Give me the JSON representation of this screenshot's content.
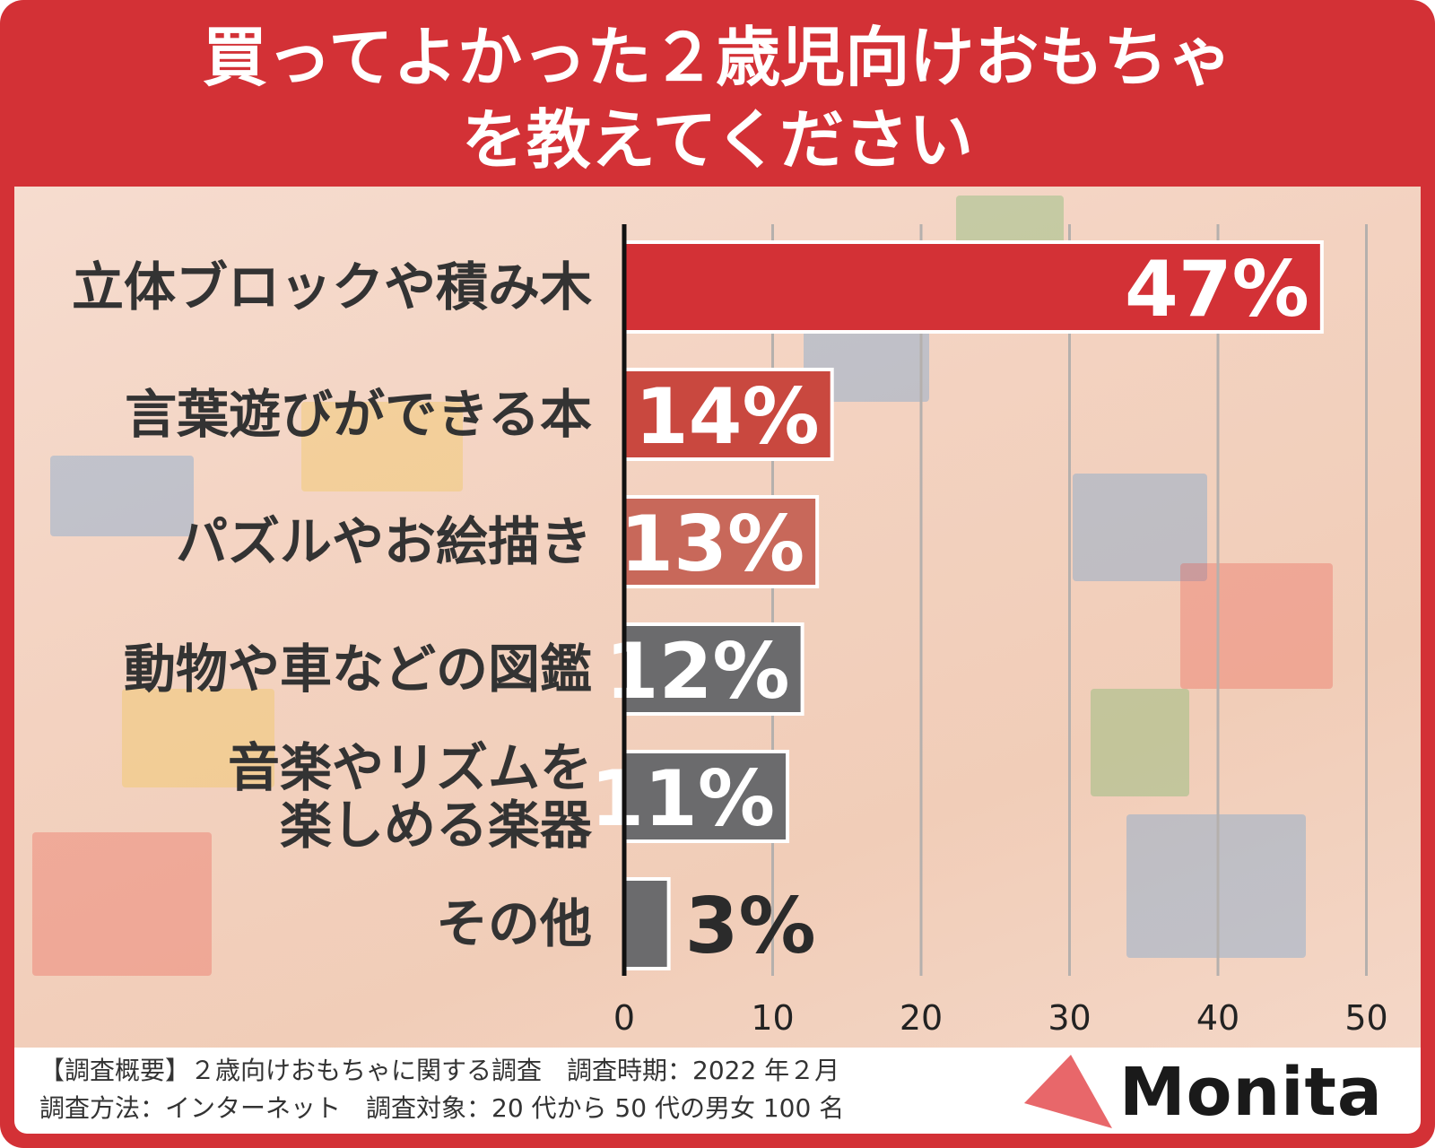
{
  "title": {
    "line1": "買ってよかった２歳児向けおもちゃ",
    "line2": "を教えてください"
  },
  "chart_data": {
    "type": "bar",
    "orientation": "horizontal",
    "categories": [
      [
        "立体ブロックや積み木"
      ],
      [
        "言葉遊びができる本"
      ],
      [
        "パズルやお絵描き"
      ],
      [
        "動物や車などの図鑑"
      ],
      [
        "音楽やリズムを",
        "楽しめる楽器"
      ],
      [
        "その他"
      ]
    ],
    "values": [
      47,
      14,
      13,
      12,
      11,
      3
    ],
    "value_labels": [
      "47%",
      "14%",
      "13%",
      "12%",
      "11%",
      "3%"
    ],
    "bar_colors": [
      "#d33136",
      "#c9483f",
      "#c8685a",
      "#6b6b6d",
      "#6b6b6d",
      "#6b6b6d"
    ],
    "xlim": [
      0,
      50
    ],
    "xticks": [
      "0",
      "10",
      "20",
      "30",
      "40",
      "50"
    ],
    "grid": true
  },
  "footer": {
    "line1": "【調査概要】２歳向けおもちゃに関する調査　調査時期：2022 年２月",
    "line2": "調査方法：インターネット　調査対象：20 代から 50 代の男女 100 名"
  },
  "logo": {
    "text": "Monita",
    "mark_color": "#e8676a"
  }
}
